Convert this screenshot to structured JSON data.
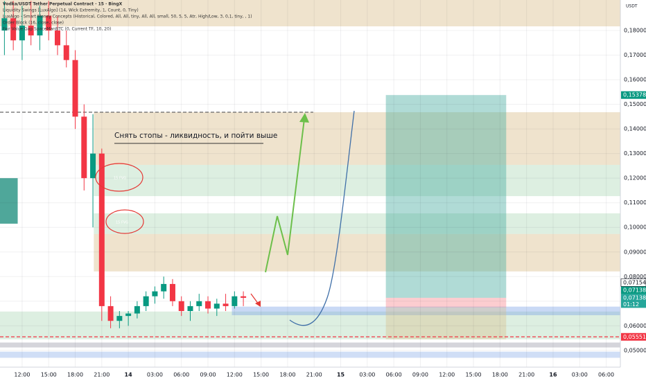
{
  "chart_data": {
    "type": "candlestick",
    "title": "Vodka/USDT Tether Perpetual Contract · 15 · BingX",
    "indicators": [
      "Liquidity Swings [LuxAlgo] (14, Wick Extremity, 1, Count, 0, Tiny)",
      "LuxAlgo - Smart Money Concepts (Historical, Colored, All, All, tiny, All, All, small, 50, 5, 5, Atr, High/Low, 3, 0,1, tiny, , 1)",
      "Order Block (16, close, close)",
      "Fair Value Gap SpaceManBTC (0, Current TF, 10, 20)"
    ],
    "currency": "USDT",
    "annotation": "Снять стопы - ликвидность, и пойти выше",
    "fvg_labels": [
      "15 FVG",
      "15 FVG",
      "15 FVG"
    ],
    "up_color": "#089981",
    "down_color": "#f23645",
    "x": [
      -2,
      -1,
      0,
      1,
      2,
      3,
      4,
      5,
      6,
      7,
      8,
      9,
      10,
      11,
      12,
      13,
      14,
      15,
      16,
      17,
      18,
      19,
      20,
      21,
      22,
      23,
      24,
      25
    ],
    "open": [
      0.18,
      0.185,
      0.176,
      0.182,
      0.178,
      0.186,
      0.18,
      0.174,
      0.168,
      0.145,
      0.12,
      0.13,
      0.068,
      0.062,
      0.064,
      0.065,
      0.068,
      0.072,
      0.074,
      0.077,
      0.07,
      0.066,
      0.068,
      0.07,
      0.067,
      0.069,
      0.068,
      0.072
    ],
    "high": [
      0.192,
      0.192,
      0.19,
      0.192,
      0.19,
      0.192,
      0.186,
      0.18,
      0.172,
      0.15,
      0.146,
      0.132,
      0.072,
      0.066,
      0.066,
      0.07,
      0.074,
      0.076,
      0.08,
      0.079,
      0.072,
      0.07,
      0.073,
      0.072,
      0.071,
      0.073,
      0.074,
      0.074
    ],
    "low": [
      0.17,
      0.172,
      0.168,
      0.174,
      0.172,
      0.176,
      0.17,
      0.165,
      0.14,
      0.115,
      0.1,
      0.062,
      0.059,
      0.059,
      0.06,
      0.063,
      0.066,
      0.069,
      0.071,
      0.068,
      0.064,
      0.062,
      0.066,
      0.065,
      0.064,
      0.066,
      0.067,
      0.068
    ],
    "close": [
      0.185,
      0.176,
      0.182,
      0.178,
      0.186,
      0.18,
      0.174,
      0.168,
      0.145,
      0.12,
      0.13,
      0.068,
      0.062,
      0.064,
      0.065,
      0.068,
      0.072,
      0.074,
      0.077,
      0.07,
      0.066,
      0.068,
      0.07,
      0.067,
      0.069,
      0.068,
      0.072,
      0.07138
    ],
    "xlim": [
      -2.5,
      67.6
    ],
    "xticks": [
      {
        "value": 0,
        "label": "12:00"
      },
      {
        "value": 3,
        "label": "15:00"
      },
      {
        "value": 6,
        "label": "18:00"
      },
      {
        "value": 9,
        "label": "21:00"
      },
      {
        "value": 12,
        "label": "14"
      },
      {
        "value": 15,
        "label": "03:00"
      },
      {
        "value": 18,
        "label": "06:00"
      },
      {
        "value": 21,
        "label": "09:00"
      },
      {
        "value": 24,
        "label": "12:00"
      },
      {
        "value": 27,
        "label": "15:00"
      },
      {
        "value": 30,
        "label": "18:00"
      },
      {
        "value": 33,
        "label": "21:00"
      },
      {
        "value": 36,
        "label": "15"
      },
      {
        "value": 39,
        "label": "03:00"
      },
      {
        "value": 42,
        "label": "06:00"
      },
      {
        "value": 45,
        "label": "09:00"
      },
      {
        "value": 48,
        "label": "12:00"
      },
      {
        "value": 51,
        "label": "15:00"
      },
      {
        "value": 54,
        "label": "18:00"
      },
      {
        "value": 57,
        "label": "21:00"
      },
      {
        "value": 60,
        "label": "16"
      },
      {
        "value": 63,
        "label": "03:00"
      },
      {
        "value": 66,
        "label": "06:00"
      }
    ],
    "ylim": [
      0.0432,
      0.1924
    ],
    "yticks": [
      {
        "value": 0.05,
        "label": "0,05000"
      },
      {
        "value": 0.06,
        "label": "0,06000"
      },
      {
        "value": 0.07,
        "label": "0,07000"
      },
      {
        "value": 0.08,
        "label": "0,08000"
      },
      {
        "value": 0.09,
        "label": "0,09000"
      },
      {
        "value": 0.1,
        "label": "0,10000"
      },
      {
        "value": 0.11,
        "label": "0,11000"
      },
      {
        "value": 0.12,
        "label": "0,12000"
      },
      {
        "value": 0.13,
        "label": "0,13000"
      },
      {
        "value": 0.14,
        "label": "0,14000"
      },
      {
        "value": 0.15,
        "label": "0,15000"
      },
      {
        "value": 0.16,
        "label": "0,16000"
      },
      {
        "value": 0.17,
        "label": "0,17000"
      },
      {
        "value": 0.18,
        "label": "0,18000"
      }
    ],
    "grid": true,
    "price_labels": [
      {
        "value": 0.15378,
        "label": "0,15378",
        "color": "#089981"
      },
      {
        "value": 0.07154,
        "label": "0,07154",
        "color": "#ffffff"
      },
      {
        "value": 0.07138,
        "label": "0,07138",
        "color": "#089981"
      },
      {
        "value": 0.07138,
        "label": "0,07138",
        "countdown": "01:12",
        "color": "#26a69a"
      },
      {
        "value": 0.05551,
        "label": "0,05551",
        "color": "#f23645"
      }
    ],
    "levels": [
      {
        "value": 0.1468,
        "x": [
          -2.5,
          32.9
        ],
        "color": "#666666"
      },
      {
        "value": 0.05551,
        "x": [
          -2.5,
          67.6
        ],
        "color": "#f23645"
      }
    ],
    "zones": [
      {
        "top": 0.1924,
        "bottom": 0.1817,
        "x": [
          -2.5,
          67.6
        ],
        "color": "rgba(214,186,130,0.4)"
      },
      {
        "top": 0.1468,
        "bottom": 0.1254,
        "x": [
          8.1,
          67.6
        ],
        "color": "rgba(214,186,130,0.4)"
      },
      {
        "top": 0.1254,
        "bottom": 0.1127,
        "x": [
          8.1,
          67.6
        ],
        "color": "rgba(170,215,180,0.4)"
      },
      {
        "top": 0.1057,
        "bottom": 0.0973,
        "x": [
          8.1,
          67.6
        ],
        "color": "rgba(170,215,180,0.4)"
      },
      {
        "top": 0.0973,
        "bottom": 0.0821,
        "x": [
          8.1,
          67.6
        ],
        "color": "rgba(214,186,130,0.4)"
      },
      {
        "top": 0.0658,
        "bottom": 0.0545,
        "x": [
          -2.5,
          67.6
        ],
        "color": "rgba(170,215,180,0.4)"
      },
      {
        "top": 0.0678,
        "bottom": 0.0643,
        "x": [
          23.7,
          67.6
        ],
        "color": "rgba(120,160,230,0.4)"
      },
      {
        "top": 0.0532,
        "bottom": 0.0512,
        "x": [
          -2.5,
          67.6
        ],
        "color": "rgba(150,150,165,0.4)"
      },
      {
        "top": 0.0495,
        "bottom": 0.047,
        "x": [
          -2.5,
          67.6
        ],
        "color": "rgba(120,160,230,0.35)"
      },
      {
        "top": 0.12,
        "bottom": 0.1015,
        "x": [
          -2.5,
          -0.5
        ],
        "color": "#4fa79a"
      },
      {
        "top": 0.15378,
        "bottom": 0.07138,
        "x": [
          41.1,
          54.7
        ],
        "color": "rgba(80,175,165,0.45)"
      },
      {
        "top": 0.07138,
        "bottom": 0.0675,
        "x": [
          41.1,
          54.7
        ],
        "color": "rgba(242,54,69,0.25)"
      },
      {
        "top": 0.0675,
        "bottom": 0.0545,
        "x": [
          41.1,
          54.7
        ],
        "color": "rgba(214,186,130,0.35)"
      }
    ]
  }
}
